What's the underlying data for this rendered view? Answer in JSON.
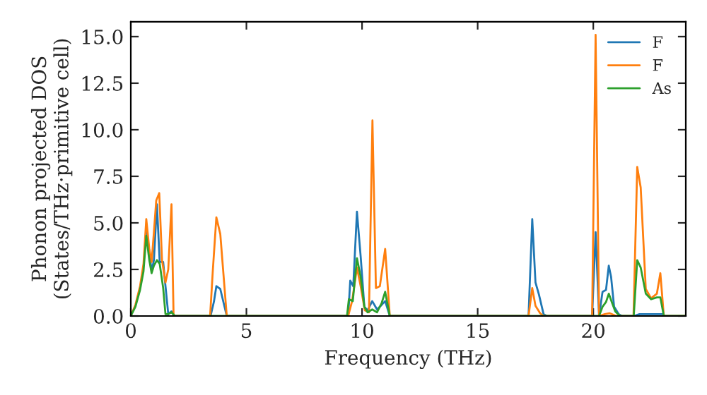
{
  "chart_data": {
    "type": "line",
    "xlabel": "Frequency (THz)",
    "ylabel": "Phonon projected DOS\n(States/THz·primitive cell)",
    "xlim": [
      0,
      24
    ],
    "ylim": [
      0,
      15.8
    ],
    "xticks": [
      0,
      5,
      10,
      15,
      20
    ],
    "yticks": [
      {
        "value": 0,
        "label": "0.0"
      },
      {
        "value": 2.5,
        "label": "2.5"
      },
      {
        "value": 5,
        "label": "5.0"
      },
      {
        "value": 7.5,
        "label": "7.5"
      },
      {
        "value": 10,
        "label": "10.0"
      },
      {
        "value": 12.5,
        "label": "12.5"
      },
      {
        "value": 15,
        "label": "15.0"
      }
    ],
    "grid": false,
    "legend": "top right",
    "marker": "none",
    "line_style": "solid",
    "series": [
      {
        "name": "F",
        "color": "#1f77b4",
        "x": [
          0.67,
          0.8,
          0.9,
          1.0,
          1.13,
          1.25,
          1.4,
          1.5,
          1.62,
          1.76,
          1.9,
          3.45,
          3.6,
          3.7,
          3.87,
          4.15,
          9.4,
          9.49,
          9.62,
          9.78,
          9.94,
          10.1,
          10.24,
          10.44,
          10.65,
          10.85,
          11.0,
          11.2,
          17.2,
          17.36,
          17.5,
          17.65,
          17.85,
          18.0,
          19.95,
          20.1,
          20.25,
          20.4,
          20.55,
          20.67,
          20.77,
          20.9,
          21.1,
          21.25,
          21.75,
          22.0,
          22.5,
          23.0,
          23.1,
          24
        ],
        "values": [
          4.6,
          3.5,
          2.4,
          3.0,
          6.0,
          2.9,
          2.9,
          1.6,
          0.1,
          0.25,
          0,
          0,
          0.8,
          1.6,
          1.45,
          0,
          0,
          1.9,
          1.6,
          5.6,
          3.2,
          0.5,
          0.3,
          0.8,
          0.35,
          0.6,
          0.8,
          0,
          0,
          5.2,
          1.8,
          1.15,
          0.1,
          0,
          0,
          4.5,
          0,
          1.3,
          1.4,
          2.7,
          2.1,
          0.5,
          0.1,
          0,
          0,
          0.1,
          0.1,
          0.1,
          0,
          0
        ]
      },
      {
        "name": "F",
        "color": "#ff7f0e",
        "x": [
          0,
          0.2,
          0.4,
          0.55,
          0.67,
          0.8,
          0.9,
          1.0,
          1.1,
          1.23,
          1.35,
          1.5,
          1.62,
          1.76,
          1.85,
          3.43,
          3.55,
          3.7,
          3.87,
          4.15,
          9.4,
          9.57,
          9.78,
          9.94,
          10.12,
          10.3,
          10.45,
          10.6,
          10.77,
          11.0,
          11.2,
          17.2,
          17.36,
          17.5,
          17.7,
          17.85,
          19.95,
          20.1,
          20.25,
          20.5,
          20.7,
          21.0,
          21.74,
          21.9,
          22.05,
          22.27,
          22.5,
          22.75,
          22.9,
          23.05,
          24
        ],
        "values": [
          0,
          0.6,
          1.6,
          2.8,
          5.2,
          3.6,
          2.9,
          4.5,
          6.2,
          6.6,
          3.0,
          1.8,
          2.5,
          6.0,
          0,
          0,
          2.5,
          5.3,
          4.4,
          0,
          0,
          0.8,
          2.6,
          1.6,
          0.3,
          0.2,
          10.5,
          1.5,
          1.6,
          3.6,
          0,
          0,
          1.5,
          0.55,
          0.15,
          0,
          0,
          15.1,
          0,
          0.1,
          0.15,
          0,
          0,
          8.0,
          6.9,
          1.45,
          0.95,
          1.2,
          2.3,
          0,
          0
        ]
      },
      {
        "name": "As",
        "color": "#2ca02c",
        "x": [
          0,
          0.2,
          0.4,
          0.55,
          0.67,
          0.8,
          0.9,
          1.0,
          1.13,
          1.25,
          1.4,
          1.5,
          1.62,
          1.76,
          1.9,
          9.35,
          9.43,
          9.6,
          9.78,
          9.94,
          10.1,
          10.24,
          10.44,
          10.65,
          10.85,
          11.0,
          11.2,
          20.25,
          20.4,
          20.55,
          20.67,
          20.8,
          20.95,
          21.15,
          21.75,
          21.9,
          22.05,
          22.27,
          22.5,
          22.75,
          22.9,
          23.05,
          24
        ],
        "values": [
          0,
          0.5,
          1.4,
          2.4,
          4.3,
          3.0,
          2.3,
          2.7,
          3.0,
          2.8,
          1.5,
          0.1,
          0.1,
          0.2,
          0,
          0,
          0.9,
          0.8,
          3.1,
          2.1,
          0.5,
          0.2,
          0.35,
          0.2,
          0.7,
          1.3,
          0,
          0,
          0.5,
          0.75,
          1.2,
          0.75,
          0.25,
          0,
          0,
          3.0,
          2.6,
          1.2,
          0.9,
          1.0,
          1.0,
          0,
          0
        ]
      }
    ]
  }
}
